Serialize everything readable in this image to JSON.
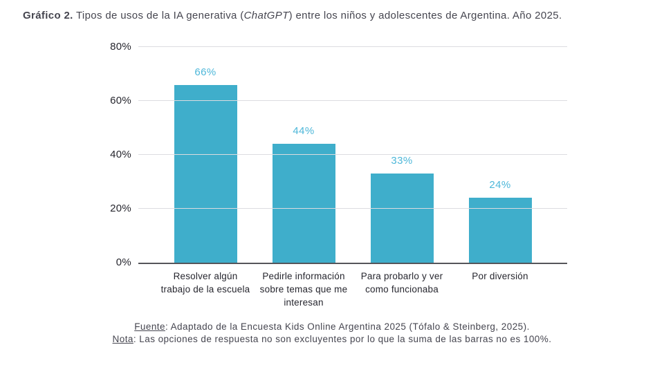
{
  "title": {
    "prefix": "Gráfico 2.",
    "before_italic": " Tipos de usos de la IA generativa (",
    "italic": "ChatGPT",
    "after_italic": ") entre los niños y adolescentes de Argentina. Año 2025."
  },
  "chart_data": {
    "type": "bar",
    "title": "Gráfico 2. Tipos de usos de la IA generativa (ChatGPT) entre los niños y adolescentes de Argentina. Año 2025.",
    "categories": [
      "Resolver algún trabajo de la escuela",
      "Pedirle información sobre temas que me interesan",
      "Para probarlo y ver como funcionaba",
      "Por diversión"
    ],
    "values": [
      66,
      44,
      33,
      24
    ],
    "value_labels": [
      "66%",
      "44%",
      "33%",
      "24%"
    ],
    "xlabel": "",
    "ylabel": "",
    "ylim": [
      0,
      80
    ],
    "yticks": [
      "0%",
      "20%",
      "40%",
      "60%",
      "80%"
    ],
    "grid": true,
    "legend": "none",
    "bar_color": "#3FAECB",
    "value_label_color": "#4DB7D9"
  },
  "footer": {
    "fuente_label": "Fuente",
    "fuente_text": ": Adaptado de la Encuesta Kids Online Argentina 2025 (Tófalo & Steinberg, 2025).",
    "nota_label": "Nota",
    "nota_text": ": Las opciones de respuesta no son excluyentes por lo que la suma de las barras no es 100%."
  }
}
